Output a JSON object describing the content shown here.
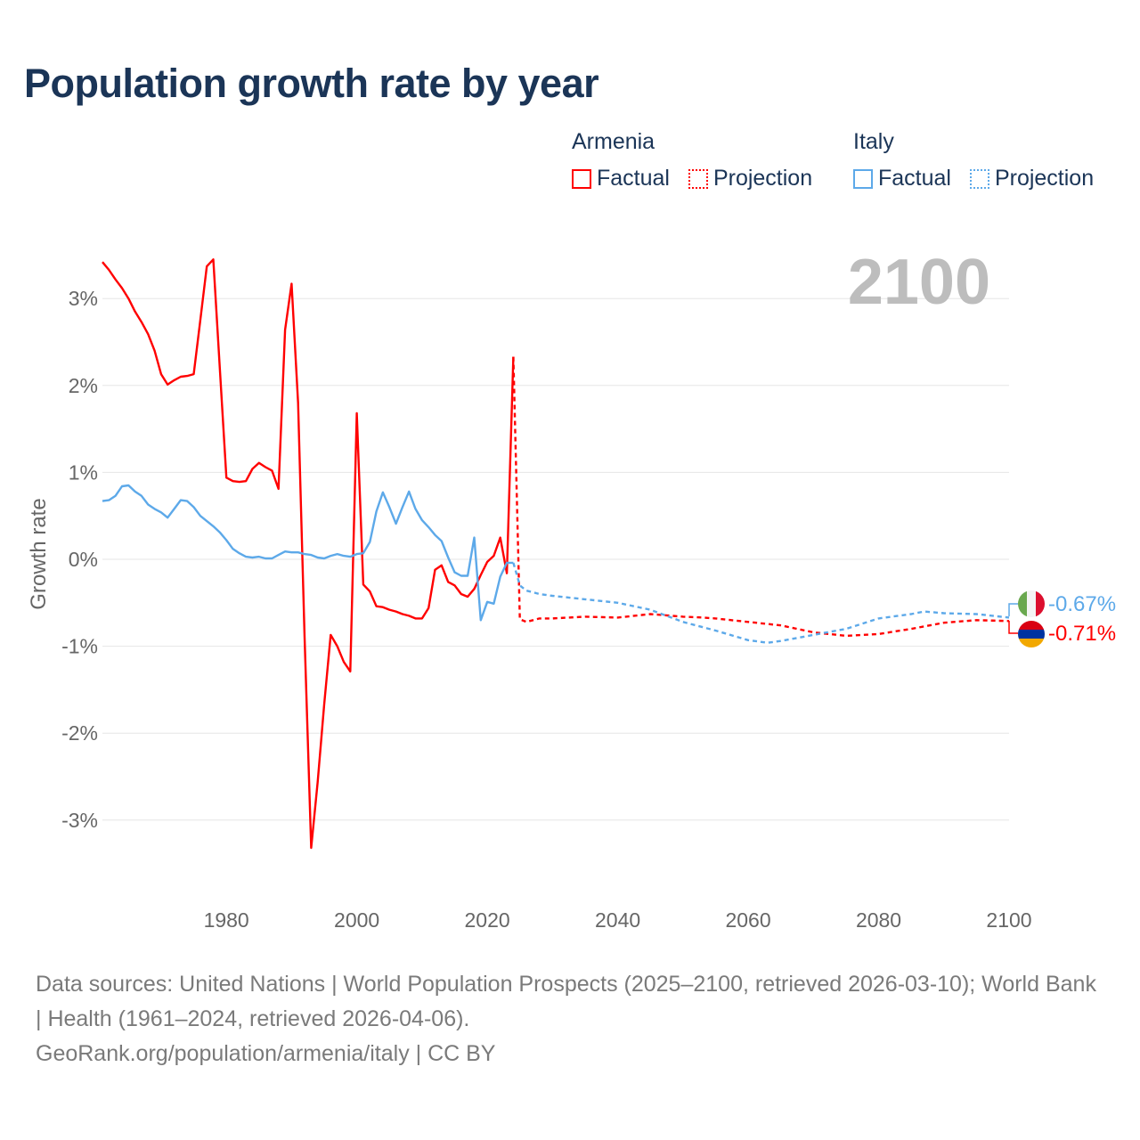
{
  "title": "Population growth rate by year",
  "legend": {
    "groups": [
      {
        "name": "Armenia",
        "color": "#ff0000",
        "factual": "Factual",
        "projection": "Projection"
      },
      {
        "name": "Italy",
        "color": "#5da9e9",
        "factual": "Factual",
        "projection": "Projection"
      }
    ]
  },
  "year_label": "2100",
  "end_labels": {
    "italy": "-0.67%",
    "armenia": "-0.71%"
  },
  "footer": {
    "line1": "Data sources: United Nations | World Population Prospects (2025–2100, retrieved 2026-03-10); World Bank | Health (1961–2024, retrieved 2026-04-06).",
    "line2": "GeoRank.org/population/armenia/italy | CC BY"
  },
  "chart_data": {
    "type": "line",
    "title": "Population growth rate by year",
    "xlabel": "",
    "ylabel": "Growth rate",
    "xlim": [
      1961,
      2100
    ],
    "ylim": [
      -4,
      3.5
    ],
    "xticks": [
      1980,
      2000,
      2020,
      2040,
      2060,
      2080,
      2100
    ],
    "yticks": [
      3,
      2,
      1,
      0,
      -1,
      -2,
      -3
    ],
    "ytick_labels": [
      "3%",
      "2%",
      "1%",
      "0%",
      "-1%",
      "-2%",
      "-3%"
    ],
    "grid": true,
    "legend_position": "top-right",
    "series": [
      {
        "name": "Armenia Factual",
        "color": "#ff0000",
        "style": "solid",
        "x": [
          1961,
          1962,
          1963,
          1964,
          1965,
          1966,
          1967,
          1968,
          1969,
          1970,
          1971,
          1972,
          1973,
          1974,
          1975,
          1976,
          1977,
          1978,
          1979,
          1980,
          1981,
          1982,
          1983,
          1984,
          1985,
          1986,
          1987,
          1988,
          1989,
          1990,
          1991,
          1992,
          1993,
          1994,
          1995,
          1996,
          1997,
          1998,
          1999,
          2000,
          2001,
          2002,
          2003,
          2004,
          2005,
          2006,
          2007,
          2008,
          2009,
          2010,
          2011,
          2012,
          2013,
          2014,
          2015,
          2016,
          2017,
          2018,
          2019,
          2020,
          2021,
          2022,
          2023,
          2024
        ],
        "y": [
          3.42,
          3.33,
          3.22,
          3.12,
          3.0,
          2.85,
          2.73,
          2.59,
          2.4,
          2.13,
          2.01,
          2.06,
          2.1,
          2.11,
          2.13,
          2.75,
          3.37,
          3.45,
          2.2,
          0.94,
          0.9,
          0.89,
          0.9,
          1.04,
          1.11,
          1.06,
          1.02,
          0.81,
          2.64,
          3.17,
          1.8,
          -0.9,
          -3.32,
          -2.56,
          -1.67,
          -0.87,
          -1.0,
          -1.18,
          -1.29,
          1.68,
          -0.29,
          -0.37,
          -0.54,
          -0.55,
          -0.58,
          -0.6,
          -0.63,
          -0.65,
          -0.68,
          -0.68,
          -0.56,
          -0.12,
          -0.07,
          -0.26,
          -0.3,
          -0.4,
          -0.43,
          -0.34,
          -0.18,
          -0.03,
          0.04,
          0.25,
          -0.16,
          2.33
        ]
      },
      {
        "name": "Armenia Projection",
        "color": "#ff0000",
        "style": "dotted",
        "x": [
          2024,
          2025,
          2026,
          2028,
          2030,
          2035,
          2040,
          2045,
          2050,
          2053,
          2055,
          2060,
          2065,
          2070,
          2075,
          2080,
          2085,
          2090,
          2095,
          2100
        ],
        "y": [
          2.33,
          -0.69,
          -0.72,
          -0.68,
          -0.68,
          -0.66,
          -0.67,
          -0.63,
          -0.66,
          -0.67,
          -0.68,
          -0.72,
          -0.76,
          -0.84,
          -0.88,
          -0.86,
          -0.8,
          -0.73,
          -0.7,
          -0.71
        ]
      },
      {
        "name": "Italy Factual",
        "color": "#5da9e9",
        "style": "solid",
        "x": [
          1961,
          1962,
          1963,
          1964,
          1965,
          1966,
          1967,
          1968,
          1969,
          1970,
          1971,
          1972,
          1973,
          1974,
          1975,
          1976,
          1977,
          1978,
          1979,
          1980,
          1981,
          1982,
          1983,
          1984,
          1985,
          1986,
          1987,
          1988,
          1989,
          1990,
          1991,
          1992,
          1993,
          1994,
          1995,
          1996,
          1997,
          1998,
          1999,
          2000,
          2001,
          2002,
          2003,
          2004,
          2005,
          2006,
          2007,
          2008,
          2009,
          2010,
          2011,
          2012,
          2013,
          2014,
          2015,
          2016,
          2017,
          2018,
          2019,
          2020,
          2021,
          2022,
          2023,
          2024
        ],
        "y": [
          0.67,
          0.68,
          0.73,
          0.84,
          0.85,
          0.78,
          0.73,
          0.63,
          0.58,
          0.54,
          0.48,
          0.58,
          0.68,
          0.67,
          0.6,
          0.5,
          0.44,
          0.38,
          0.31,
          0.22,
          0.12,
          0.07,
          0.03,
          0.02,
          0.03,
          0.01,
          0.01,
          0.05,
          0.09,
          0.08,
          0.08,
          0.06,
          0.05,
          0.02,
          0.01,
          0.04,
          0.06,
          0.04,
          0.03,
          0.06,
          0.07,
          0.2,
          0.55,
          0.77,
          0.6,
          0.41,
          0.6,
          0.78,
          0.58,
          0.45,
          0.37,
          0.28,
          0.21,
          0.02,
          -0.15,
          -0.19,
          -0.19,
          0.25,
          -0.7,
          -0.49,
          -0.51,
          -0.2,
          -0.04,
          -0.04
        ]
      },
      {
        "name": "Italy Projection",
        "color": "#5da9e9",
        "style": "dotted",
        "x": [
          2024,
          2025,
          2026,
          2028,
          2030,
          2035,
          2040,
          2045,
          2050,
          2055,
          2060,
          2063,
          2065,
          2070,
          2075,
          2080,
          2085,
          2087,
          2090,
          2095,
          2100
        ],
        "y": [
          -0.04,
          -0.3,
          -0.36,
          -0.4,
          -0.42,
          -0.46,
          -0.5,
          -0.58,
          -0.72,
          -0.82,
          -0.93,
          -0.96,
          -0.94,
          -0.87,
          -0.8,
          -0.68,
          -0.63,
          -0.6,
          -0.62,
          -0.63,
          -0.67
        ]
      }
    ]
  }
}
